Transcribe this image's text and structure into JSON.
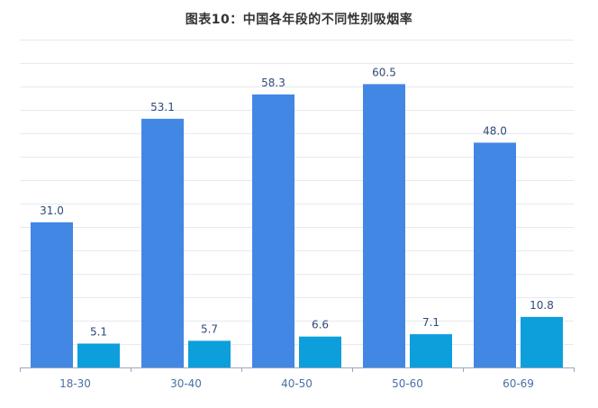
{
  "chart_data": {
    "type": "bar",
    "title": "图表10：中国各年段的不同性别吸烟率",
    "categories": [
      "18-30",
      "30-40",
      "40-50",
      "50-60",
      "60-69"
    ],
    "series": [
      {
        "values": [
          31.0,
          53.1,
          58.3,
          60.5,
          48.0
        ],
        "color": "#4287e4"
      },
      {
        "values": [
          5.1,
          5.7,
          6.6,
          7.1,
          10.8
        ],
        "color": "#0c9fdc"
      }
    ],
    "ylim": [
      0,
      70
    ],
    "grid": true,
    "legend": "none",
    "value_labels": true
  }
}
